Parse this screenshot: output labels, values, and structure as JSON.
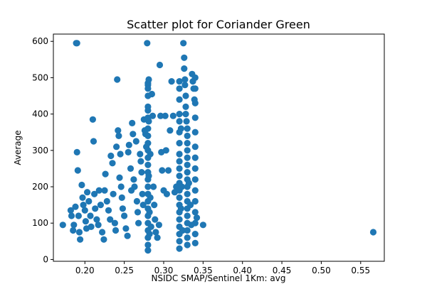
{
  "chart_data": {
    "type": "scatter",
    "title": "Scatter plot for Coriander Green",
    "xlabel": "NSIDC SMAP/Sentinel 1Km: avg",
    "ylabel": "Average",
    "xlim": [
      0.16,
      0.58
    ],
    "ylim": [
      -5,
      620
    ],
    "x_ticks": [
      0.2,
      0.25,
      0.3,
      0.35,
      0.4,
      0.45,
      0.5,
      0.55
    ],
    "x_tick_labels": [
      "0.20",
      "0.25",
      "0.30",
      "0.35",
      "0.40",
      "0.45",
      "0.50",
      "0.55"
    ],
    "y_ticks": [
      0,
      100,
      200,
      300,
      400,
      500,
      600
    ],
    "y_tick_labels": [
      "0",
      "100",
      "200",
      "300",
      "400",
      "500",
      "600"
    ],
    "marker_color": "#1f77b4",
    "grid": false,
    "points": [
      [
        0.172,
        95
      ],
      [
        0.182,
        135
      ],
      [
        0.183,
        120
      ],
      [
        0.185,
        80
      ],
      [
        0.186,
        95
      ],
      [
        0.188,
        145
      ],
      [
        0.189,
        595
      ],
      [
        0.19,
        595
      ],
      [
        0.19,
        295
      ],
      [
        0.191,
        245
      ],
      [
        0.192,
        120
      ],
      [
        0.193,
        75
      ],
      [
        0.194,
        55
      ],
      [
        0.196,
        205
      ],
      [
        0.197,
        170
      ],
      [
        0.198,
        150
      ],
      [
        0.2,
        135
      ],
      [
        0.201,
        105
      ],
      [
        0.202,
        85
      ],
      [
        0.203,
        185
      ],
      [
        0.205,
        160
      ],
      [
        0.207,
        120
      ],
      [
        0.208,
        90
      ],
      [
        0.21,
        385
      ],
      [
        0.211,
        325
      ],
      [
        0.212,
        180
      ],
      [
        0.213,
        140
      ],
      [
        0.215,
        110
      ],
      [
        0.217,
        95
      ],
      [
        0.218,
        190
      ],
      [
        0.22,
        150
      ],
      [
        0.222,
        75
      ],
      [
        0.224,
        55
      ],
      [
        0.225,
        190
      ],
      [
        0.226,
        235
      ],
      [
        0.228,
        160
      ],
      [
        0.23,
        135
      ],
      [
        0.232,
        110
      ],
      [
        0.233,
        285
      ],
      [
        0.235,
        265
      ],
      [
        0.236,
        180
      ],
      [
        0.238,
        100
      ],
      [
        0.239,
        80
      ],
      [
        0.24,
        310
      ],
      [
        0.241,
        495
      ],
      [
        0.242,
        355
      ],
      [
        0.243,
        340
      ],
      [
        0.244,
        225
      ],
      [
        0.245,
        290
      ],
      [
        0.246,
        200
      ],
      [
        0.247,
        170
      ],
      [
        0.248,
        140
      ],
      [
        0.25,
        120
      ],
      [
        0.252,
        85
      ],
      [
        0.254,
        65
      ],
      [
        0.255,
        295
      ],
      [
        0.256,
        315
      ],
      [
        0.258,
        250
      ],
      [
        0.259,
        190
      ],
      [
        0.26,
        375
      ],
      [
        0.261,
        345
      ],
      [
        0.262,
        220
      ],
      [
        0.263,
        200
      ],
      [
        0.265,
        325
      ],
      [
        0.266,
        160
      ],
      [
        0.267,
        130
      ],
      [
        0.268,
        100
      ],
      [
        0.27,
        290
      ],
      [
        0.271,
        270
      ],
      [
        0.272,
        240
      ],
      [
        0.273,
        180
      ],
      [
        0.274,
        150
      ],
      [
        0.275,
        385
      ],
      [
        0.276,
        355
      ],
      [
        0.277,
        345
      ],
      [
        0.278,
        310
      ],
      [
        0.279,
        595
      ],
      [
        0.28,
        485
      ],
      [
        0.28,
        480
      ],
      [
        0.28,
        470
      ],
      [
        0.28,
        450
      ],
      [
        0.28,
        420
      ],
      [
        0.28,
        410
      ],
      [
        0.28,
        390
      ],
      [
        0.28,
        360
      ],
      [
        0.28,
        340
      ],
      [
        0.28,
        320
      ],
      [
        0.28,
        300
      ],
      [
        0.28,
        280
      ],
      [
        0.28,
        260
      ],
      [
        0.28,
        240
      ],
      [
        0.28,
        220
      ],
      [
        0.28,
        200
      ],
      [
        0.28,
        180
      ],
      [
        0.28,
        160
      ],
      [
        0.28,
        140
      ],
      [
        0.28,
        120
      ],
      [
        0.28,
        100
      ],
      [
        0.28,
        80
      ],
      [
        0.28,
        60
      ],
      [
        0.28,
        40
      ],
      [
        0.28,
        25
      ],
      [
        0.281,
        495
      ],
      [
        0.281,
        380
      ],
      [
        0.281,
        230
      ],
      [
        0.282,
        130
      ],
      [
        0.282,
        70
      ],
      [
        0.283,
        290
      ],
      [
        0.283,
        170
      ],
      [
        0.284,
        90
      ],
      [
        0.285,
        455
      ],
      [
        0.286,
        395
      ],
      [
        0.287,
        200
      ],
      [
        0.288,
        150
      ],
      [
        0.289,
        110
      ],
      [
        0.29,
        75
      ],
      [
        0.292,
        60
      ],
      [
        0.294,
        95
      ],
      [
        0.295,
        535
      ],
      [
        0.296,
        395
      ],
      [
        0.297,
        295
      ],
      [
        0.298,
        245
      ],
      [
        0.3,
        190
      ],
      [
        0.302,
        395
      ],
      [
        0.303,
        300
      ],
      [
        0.304,
        180
      ],
      [
        0.306,
        245
      ],
      [
        0.308,
        355
      ],
      [
        0.31,
        490
      ],
      [
        0.312,
        395
      ],
      [
        0.314,
        185
      ],
      [
        0.316,
        200
      ],
      [
        0.32,
        490
      ],
      [
        0.32,
        470
      ],
      [
        0.32,
        440
      ],
      [
        0.32,
        400
      ],
      [
        0.32,
        380
      ],
      [
        0.32,
        350
      ],
      [
        0.32,
        320
      ],
      [
        0.32,
        290
      ],
      [
        0.32,
        270
      ],
      [
        0.32,
        250
      ],
      [
        0.32,
        230
      ],
      [
        0.32,
        210
      ],
      [
        0.32,
        190
      ],
      [
        0.32,
        170
      ],
      [
        0.32,
        150
      ],
      [
        0.32,
        130
      ],
      [
        0.32,
        110
      ],
      [
        0.32,
        90
      ],
      [
        0.32,
        70
      ],
      [
        0.32,
        50
      ],
      [
        0.32,
        30
      ],
      [
        0.322,
        360
      ],
      [
        0.322,
        140
      ],
      [
        0.323,
        200
      ],
      [
        0.324,
        80
      ],
      [
        0.325,
        595
      ],
      [
        0.326,
        555
      ],
      [
        0.326,
        525
      ],
      [
        0.327,
        495
      ],
      [
        0.327,
        480
      ],
      [
        0.328,
        450
      ],
      [
        0.328,
        420
      ],
      [
        0.328,
        400
      ],
      [
        0.329,
        380
      ],
      [
        0.33,
        360
      ],
      [
        0.33,
        340
      ],
      [
        0.33,
        320
      ],
      [
        0.33,
        300
      ],
      [
        0.33,
        280
      ],
      [
        0.33,
        260
      ],
      [
        0.33,
        240
      ],
      [
        0.33,
        220
      ],
      [
        0.33,
        200
      ],
      [
        0.33,
        180
      ],
      [
        0.33,
        160
      ],
      [
        0.33,
        140
      ],
      [
        0.33,
        120
      ],
      [
        0.33,
        100
      ],
      [
        0.33,
        80
      ],
      [
        0.33,
        60
      ],
      [
        0.33,
        40
      ],
      [
        0.332,
        210
      ],
      [
        0.334,
        150
      ],
      [
        0.335,
        95
      ],
      [
        0.336,
        510
      ],
      [
        0.337,
        490
      ],
      [
        0.338,
        470
      ],
      [
        0.339,
        440
      ],
      [
        0.34,
        500
      ],
      [
        0.34,
        470
      ],
      [
        0.34,
        430
      ],
      [
        0.34,
        390
      ],
      [
        0.34,
        350
      ],
      [
        0.34,
        310
      ],
      [
        0.34,
        280
      ],
      [
        0.34,
        250
      ],
      [
        0.34,
        220
      ],
      [
        0.34,
        190
      ],
      [
        0.34,
        160
      ],
      [
        0.34,
        130
      ],
      [
        0.34,
        100
      ],
      [
        0.34,
        70
      ],
      [
        0.34,
        45
      ],
      [
        0.342,
        115
      ],
      [
        0.35,
        95
      ],
      [
        0.566,
        75
      ]
    ]
  }
}
